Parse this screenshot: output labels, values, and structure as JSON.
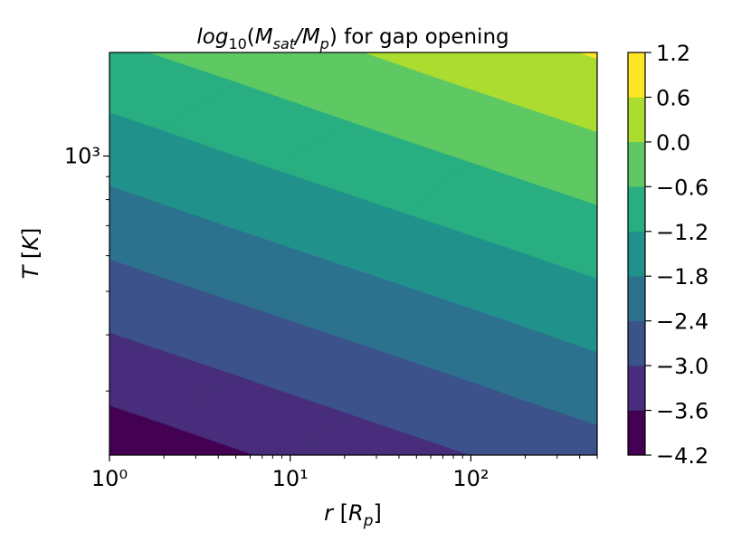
{
  "chart_data": {
    "type": "contourf",
    "title": [
      "log",
      "10",
      "(",
      "M",
      "sat",
      "/",
      "M",
      "p",
      ") for gap opening"
    ],
    "xlabel": [
      "r",
      " [",
      "R",
      "p",
      "]"
    ],
    "ylabel": [
      "T",
      " [",
      "K",
      "]"
    ],
    "xscale": "log",
    "yscale": "log",
    "x": [
      1,
      10,
      100,
      500
    ],
    "y": [
      216,
      400,
      1000,
      1700
    ],
    "z": [
      [
        -4.01,
        -3.5,
        -3.0,
        -2.65
      ],
      [
        -3.02,
        -2.52,
        -2.02,
        -1.66
      ],
      [
        -1.56,
        -1.05,
        -0.55,
        -0.2
      ],
      [
        -0.71,
        -0.21,
        0.3,
        0.65
      ]
    ],
    "xlim": [
      1,
      500
    ],
    "ylim": [
      216,
      1700
    ],
    "xticks": [
      {
        "value": 1,
        "label": "10⁰"
      },
      {
        "value": 10,
        "label": "10¹"
      },
      {
        "value": 100,
        "label": "10²"
      }
    ],
    "xminorticks": [
      2,
      3,
      4,
      5,
      6,
      7,
      8,
      9,
      20,
      30,
      40,
      50,
      60,
      70,
      80,
      90,
      200,
      300,
      400,
      500
    ],
    "yticks": [
      {
        "value": 1000,
        "label": "10³"
      }
    ],
    "yminorticks": [
      300,
      400,
      500,
      600,
      700,
      800,
      900
    ],
    "levels": [
      {
        "value": -4.2,
        "label": "−4.2"
      },
      {
        "value": -3.6,
        "label": "−3.6"
      },
      {
        "value": -3.0,
        "label": "−3.0"
      },
      {
        "value": -2.4,
        "label": "−2.4"
      },
      {
        "value": -1.8,
        "label": "−1.8"
      },
      {
        "value": -1.2,
        "label": "−1.2"
      },
      {
        "value": -0.6,
        "label": "−0.6"
      },
      {
        "value": 0.0,
        "label": "0.0"
      },
      0.6,
      1.2
    ],
    "colors": [
      "#440154",
      "#472d7b",
      "#3b528b",
      "#2c728e",
      "#21918c",
      "#28ae80",
      "#5ec962",
      "#addc30",
      "#fde725"
    ]
  }
}
